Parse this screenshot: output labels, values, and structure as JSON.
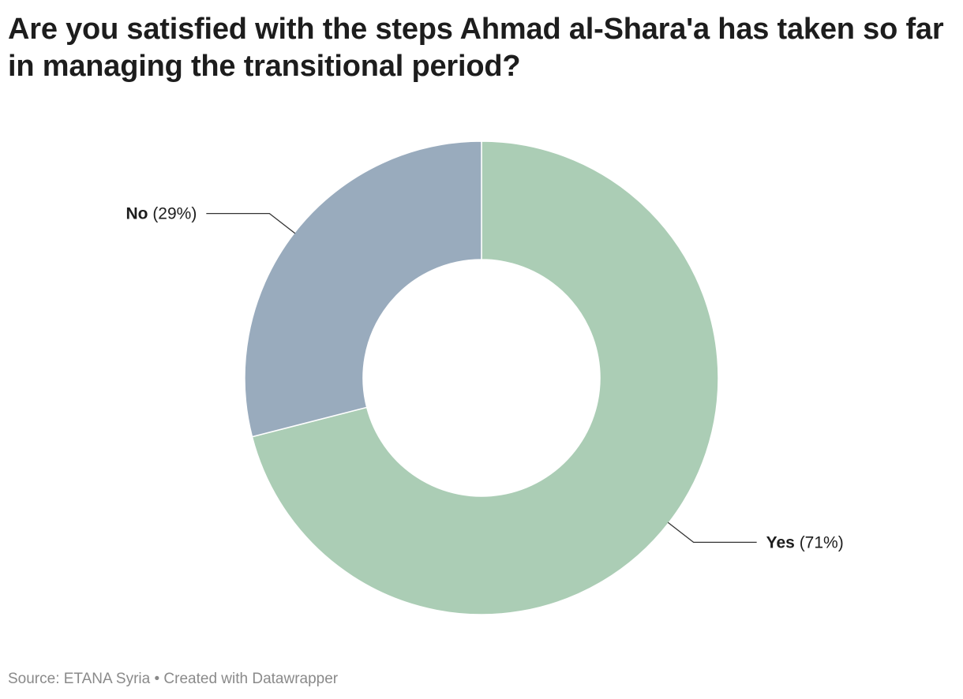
{
  "title": "Are you satisfied with the steps Ahmad al-Shara'a has taken so far in managing the transitional period?",
  "chart_data": {
    "type": "pie",
    "variant": "donut",
    "title": "Are you satisfied with the steps Ahmad al-Shara'a has taken so far in managing the transitional period?",
    "slices": [
      {
        "name": "Yes",
        "value": 71,
        "label_value": "(71%)",
        "color": "#abcdb5"
      },
      {
        "name": "No",
        "value": 29,
        "label_value": "(29%)",
        "color": "#99abbd"
      }
    ],
    "unit": "%",
    "legend": "none",
    "labels": "outside with leader lines"
  },
  "footer": {
    "source_text": "Source: ETANA Syria • Created with Datawrapper"
  }
}
